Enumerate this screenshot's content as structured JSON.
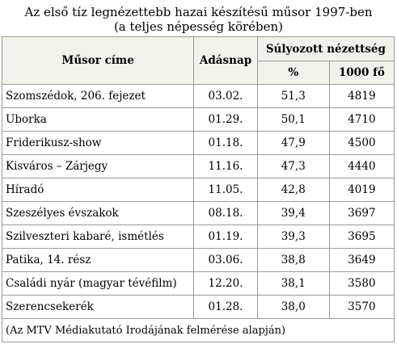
{
  "title": {
    "line1": "Az első tíz legnézettebb hazai készítésű műsor 1997-ben",
    "line2": "(a teljes népesség körében)"
  },
  "headers": {
    "program": "Műsor címe",
    "date": "Adásnap",
    "rating": "Súlyozott nézettség",
    "percent": "%",
    "thousand": "1000 fő"
  },
  "rows": [
    {
      "program": "Szomszédok, 206. fejezet",
      "date": "03.02.",
      "percent": "51,3",
      "thousand": "4819"
    },
    {
      "program": "Uborka",
      "date": "01.29.",
      "percent": "50,1",
      "thousand": "4710"
    },
    {
      "program": "Friderikusz-show",
      "date": "01.18.",
      "percent": "47,9",
      "thousand": "4500"
    },
    {
      "program": "Kisváros – Zárjegy",
      "date": "11.16.",
      "percent": "47,3",
      "thousand": "4440"
    },
    {
      "program": "Híradó",
      "date": "11.05.",
      "percent": "42,8",
      "thousand": "4019"
    },
    {
      "program": "Szeszélyes évszakok",
      "date": "08.18.",
      "percent": "39,4",
      "thousand": "3697"
    },
    {
      "program": "Szilveszteri kabaré, ismétlés",
      "date": "01.19.",
      "percent": "39,3",
      "thousand": "3695"
    },
    {
      "program": "Patika, 14. rész",
      "date": "03.06.",
      "percent": "38,8",
      "thousand": "3649"
    },
    {
      "program": "Családi nyár (magyar tévéfilm)",
      "date": "12.20.",
      "percent": "38,1",
      "thousand": "3580"
    },
    {
      "program": "Szerencsekerék",
      "date": "01.28.",
      "percent": "38,0",
      "thousand": "3570"
    }
  ],
  "footnote": "(Az MTV Médiakutató Irodájának felmérése alapján)"
}
